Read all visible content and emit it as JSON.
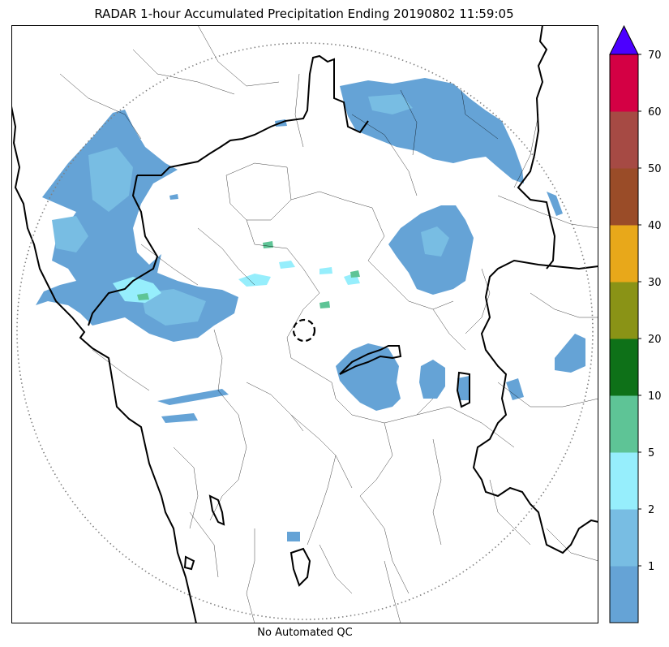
{
  "title": "RADAR 1-hour Accumulated Precipitation Ending 20190802 11:59:05",
  "footer": "No Automated QC",
  "colorbar": {
    "levels": [
      {
        "label": "",
        "color": "#65a3d6"
      },
      {
        "label": "1",
        "color": "#78bde3"
      },
      {
        "label": "2",
        "color": "#96eefc"
      },
      {
        "label": "5",
        "color": "#5ec496"
      },
      {
        "label": "10",
        "color": "#0e7118"
      },
      {
        "label": "20",
        "color": "#8a9316"
      },
      {
        "label": "30",
        "color": "#e8a81a"
      },
      {
        "label": "40",
        "color": "#9a4c28"
      },
      {
        "label": "50",
        "color": "#a64a44"
      },
      {
        "label": "60",
        "color": "#d40044"
      }
    ],
    "top_label": "70",
    "over_color": "#4c00ff"
  },
  "map": {
    "precip_main_color": "#65a3d6",
    "precip_light_color": "#78bde3",
    "precip_cyan_color": "#96eefc",
    "precip_green_color": "#5ec496"
  }
}
